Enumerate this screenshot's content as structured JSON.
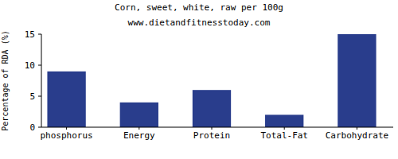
{
  "chart_data": {
    "type": "bar",
    "title": "Corn, sweet, white, raw per 100g",
    "subtitle": "www.dietandfitnesstoday.com",
    "y_label": "Percentage of RDA (%)",
    "categories": [
      "phosphorus",
      "Energy",
      "Protein",
      "Total-Fat",
      "Carbohydrate"
    ],
    "values": [
      9,
      4,
      6,
      2,
      15
    ],
    "color": "#293d8c",
    "ylim": [
      0,
      15
    ],
    "yticks": [
      0,
      5,
      10,
      15
    ],
    "grid": false
  }
}
